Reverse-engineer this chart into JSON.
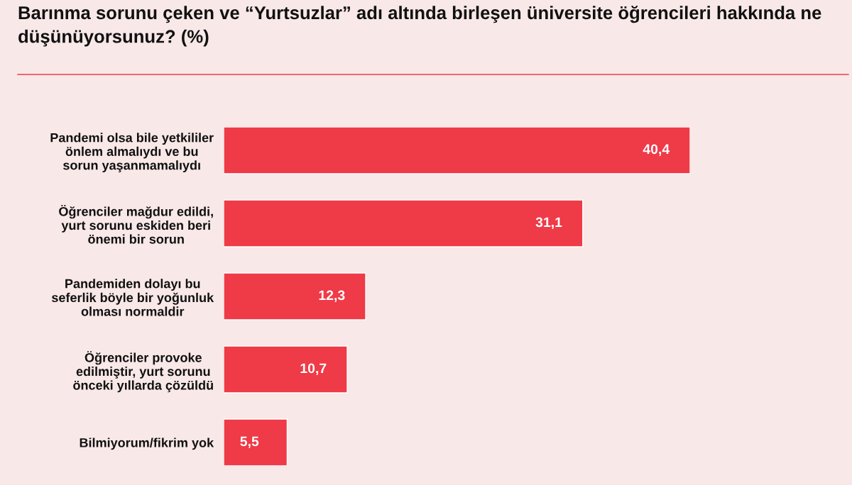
{
  "chart_data": {
    "type": "bar",
    "orientation": "horizontal",
    "title": "Barınma sorunu çeken ve “Yurtsuzlar” adı altında birleşen üniversite öğrencileri hakkında ne düşünüyorsunuz? (%)",
    "categories": [
      "Pandemi olsa bile yetkililer\nönlem almalıydı ve bu\nsorun yaşanmamalıydı",
      "Öğrenciler mağdur edildi,\nyurt sorunu eskiden beri\nönemi bir sorun",
      "Pandemiden dolayı bu\nseferlik böyle bir yoğunluk\nolması normaldir",
      "Öğrenciler provoke\nedilmiştir, yurt sorunu\nönceki yıllarda çözüldü",
      "Bilmiyorum/fikrim yok"
    ],
    "values": [
      40.4,
      31.1,
      12.3,
      10.7,
      5.5
    ],
    "value_labels": [
      "40,4",
      "31,1",
      "12,3",
      "10,7",
      "5,5"
    ],
    "color": "#ef3a47",
    "grid": false,
    "legend": false
  }
}
